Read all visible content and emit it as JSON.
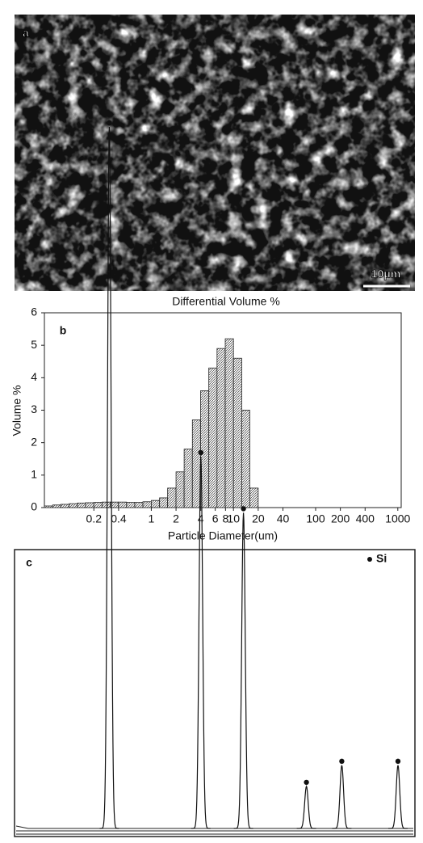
{
  "image": {
    "label": "a",
    "scale_bar": "10μm"
  },
  "chart_data": [
    {
      "type": "histogram",
      "label": "b",
      "title": "Differential Volume %",
      "xlabel": "Particle Diameter(um)",
      "ylabel": "Volume %",
      "bins": [
        0.05,
        0.063,
        0.079,
        0.1,
        0.126,
        0.158,
        0.2,
        0.251,
        0.316,
        0.398,
        0.5,
        0.63,
        0.79,
        1,
        1.26,
        1.58,
        2,
        2.51,
        3.16,
        3.98,
        5.01,
        6.31,
        7.94,
        10,
        12.6,
        15.8,
        20
      ],
      "values": [
        0.05,
        0.08,
        0.1,
        0.12,
        0.14,
        0.15,
        0.16,
        0.17,
        0.17,
        0.17,
        0.16,
        0.16,
        0.18,
        0.22,
        0.3,
        0.6,
        1.1,
        1.8,
        2.7,
        3.6,
        4.3,
        4.9,
        5.2,
        4.6,
        3.0,
        0.6
      ],
      "color": "#222222",
      "xscale": "log",
      "xlim": [
        0.05,
        1100
      ],
      "ylim": [
        0,
        6
      ],
      "xticks": [
        0.2,
        0.4,
        1,
        2,
        4,
        6,
        8,
        10,
        20,
        40,
        100,
        200,
        400,
        1000
      ],
      "yticks": [
        0,
        1,
        2,
        3,
        4,
        5,
        6
      ]
    },
    {
      "type": "line",
      "label": "c",
      "xlim": [
        10,
        90
      ],
      "ylim": [
        0,
        100
      ],
      "x": [
        28.4,
        47.3,
        56.1,
        69.1,
        76.4,
        88.0
      ],
      "series": [
        {
          "name": "Si",
          "color": "#111111",
          "values": [
            100,
            53,
            45,
            6,
            9,
            9
          ]
        }
      ]
    }
  ]
}
